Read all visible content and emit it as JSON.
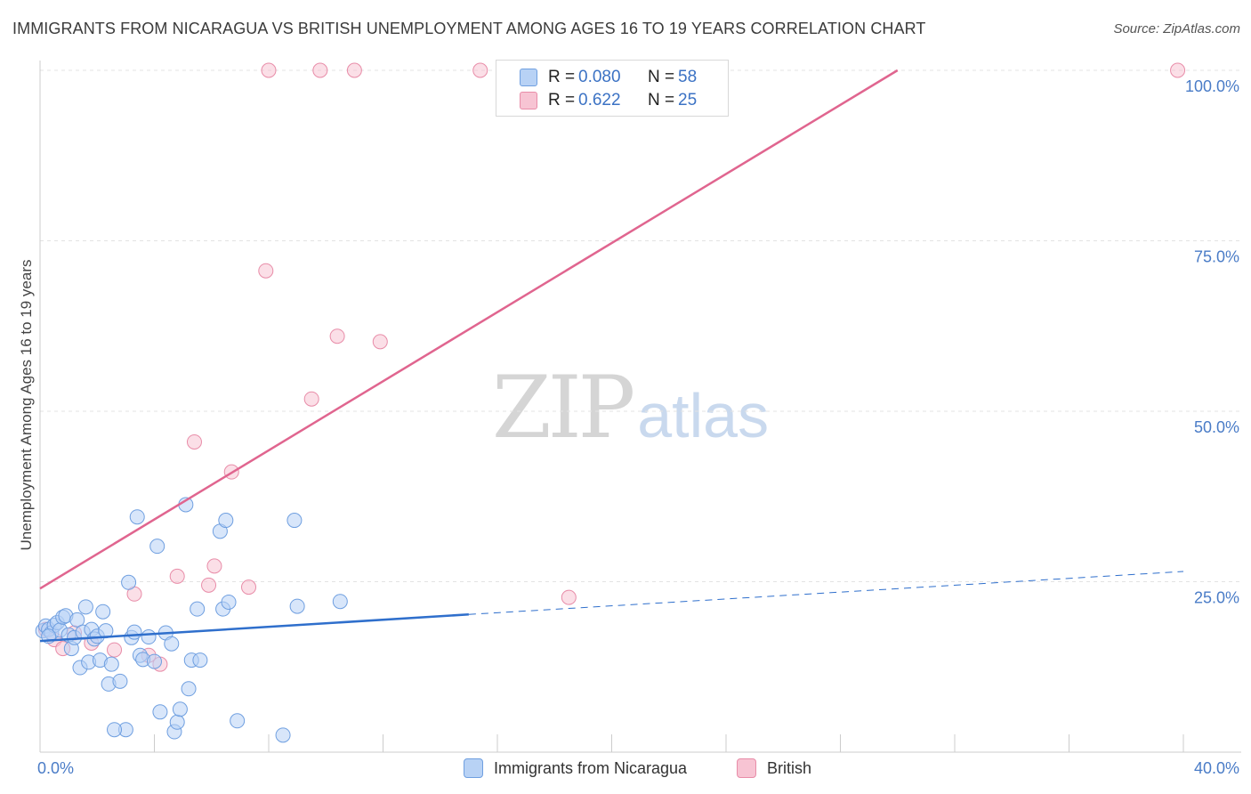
{
  "title": "IMMIGRANTS FROM NICARAGUA VS BRITISH UNEMPLOYMENT AMONG AGES 16 TO 19 YEARS CORRELATION CHART",
  "source": "Source: ZipAtlas.com",
  "watermark": {
    "zip": "ZIP",
    "atlas": "atlas"
  },
  "legend_top": [
    {
      "r_label": "R =",
      "r_value": "0.080",
      "n_label": "N =",
      "n_value": "58"
    },
    {
      "r_label": "R =",
      "r_value": "0.622",
      "n_label": "N =",
      "n_value": "25"
    }
  ],
  "legend_bottom": [
    "Immigrants from Nicaragua",
    "British"
  ],
  "colors": {
    "blue_fill": "#b8d2f5",
    "blue_stroke": "#6f9fe0",
    "blue_line": "#2f6fcc",
    "pink_fill": "#f7c4d3",
    "pink_stroke": "#e88ca8",
    "pink_line": "#e0658f",
    "tick_label": "#4a7cc7",
    "grid": "#e3e3e3"
  },
  "chart_data": {
    "type": "scatter",
    "title": "IMMIGRANTS FROM NICARAGUA VS BRITISH UNEMPLOYMENT AMONG AGES 16 TO 19 YEARS CORRELATION CHART",
    "xlabel": "",
    "ylabel": "Unemployment Among Ages 16 to 19 years",
    "xlim": [
      0,
      40
    ],
    "ylim": [
      0,
      100
    ],
    "x_tick_labels": [
      "0.0%",
      "40.0%"
    ],
    "y_tick_labels": [
      "25.0%",
      "50.0%",
      "75.0%",
      "100.0%"
    ],
    "y_ticks": [
      25,
      50,
      75,
      100
    ],
    "grid": true,
    "legend_position": "top-center",
    "series": [
      {
        "name": "Immigrants from Nicaragua",
        "R": 0.08,
        "N": 58,
        "trend": {
          "x0": 0,
          "y0": 16.3,
          "x1": 15,
          "y1": 20.2,
          "dash_to_x": 40,
          "dash_to_y": 26.5
        },
        "points": [
          [
            0.1,
            17.8
          ],
          [
            0.2,
            18.5
          ],
          [
            0.3,
            18.0
          ],
          [
            0.4,
            17.5
          ],
          [
            0.5,
            18.6
          ],
          [
            0.6,
            19.0
          ],
          [
            0.7,
            17.9
          ],
          [
            0.8,
            19.8
          ],
          [
            0.9,
            20.0
          ],
          [
            1.0,
            17.2
          ],
          [
            1.1,
            15.2
          ],
          [
            1.2,
            16.8
          ],
          [
            1.3,
            19.4
          ],
          [
            1.4,
            12.4
          ],
          [
            1.5,
            17.6
          ],
          [
            1.6,
            21.3
          ],
          [
            1.7,
            13.2
          ],
          [
            1.8,
            18.0
          ],
          [
            1.9,
            16.6
          ],
          [
            2.0,
            17.0
          ],
          [
            2.1,
            13.5
          ],
          [
            2.2,
            20.6
          ],
          [
            2.3,
            17.8
          ],
          [
            2.4,
            10.0
          ],
          [
            2.5,
            12.9
          ],
          [
            2.8,
            10.4
          ],
          [
            3.1,
            24.9
          ],
          [
            3.2,
            16.8
          ],
          [
            3.3,
            17.6
          ],
          [
            3.4,
            34.5
          ],
          [
            3.5,
            14.2
          ],
          [
            3.6,
            13.6
          ],
          [
            3.8,
            16.9
          ],
          [
            4.0,
            13.3
          ],
          [
            4.1,
            30.2
          ],
          [
            4.2,
            5.9
          ],
          [
            4.4,
            17.5
          ],
          [
            4.6,
            15.9
          ],
          [
            4.7,
            3.0
          ],
          [
            4.8,
            4.4
          ],
          [
            4.9,
            6.3
          ],
          [
            5.1,
            36.3
          ],
          [
            5.2,
            9.3
          ],
          [
            5.3,
            13.5
          ],
          [
            5.5,
            21.0
          ],
          [
            5.6,
            13.5
          ],
          [
            6.3,
            32.4
          ],
          [
            6.4,
            21.0
          ],
          [
            6.5,
            34.0
          ],
          [
            6.6,
            22.0
          ],
          [
            6.9,
            4.6
          ],
          [
            8.5,
            2.5
          ],
          [
            8.9,
            34.0
          ],
          [
            9.0,
            21.4
          ],
          [
            3.0,
            3.3
          ],
          [
            2.6,
            3.3
          ],
          [
            0.3,
            17.0
          ],
          [
            10.5,
            22.1
          ]
        ]
      },
      {
        "name": "British",
        "R": 0.622,
        "N": 25,
        "trend": {
          "x0": 0,
          "y0": 24.0,
          "x1": 30,
          "y1": 100.0
        },
        "points": [
          [
            0.2,
            18.0
          ],
          [
            0.5,
            16.5
          ],
          [
            0.8,
            15.2
          ],
          [
            1.2,
            17.5
          ],
          [
            1.8,
            16.0
          ],
          [
            2.6,
            15.0
          ],
          [
            3.3,
            23.2
          ],
          [
            3.8,
            14.2
          ],
          [
            4.2,
            12.9
          ],
          [
            4.8,
            25.8
          ],
          [
            5.4,
            45.5
          ],
          [
            5.9,
            24.5
          ],
          [
            6.1,
            27.3
          ],
          [
            6.7,
            41.1
          ],
          [
            7.3,
            24.2
          ],
          [
            7.9,
            70.6
          ],
          [
            8.0,
            100
          ],
          [
            9.5,
            51.8
          ],
          [
            9.8,
            100
          ],
          [
            10.4,
            61.0
          ],
          [
            11.0,
            100
          ],
          [
            11.9,
            60.2
          ],
          [
            15.4,
            100
          ],
          [
            18.5,
            22.7
          ],
          [
            39.8,
            100
          ]
        ]
      }
    ]
  }
}
